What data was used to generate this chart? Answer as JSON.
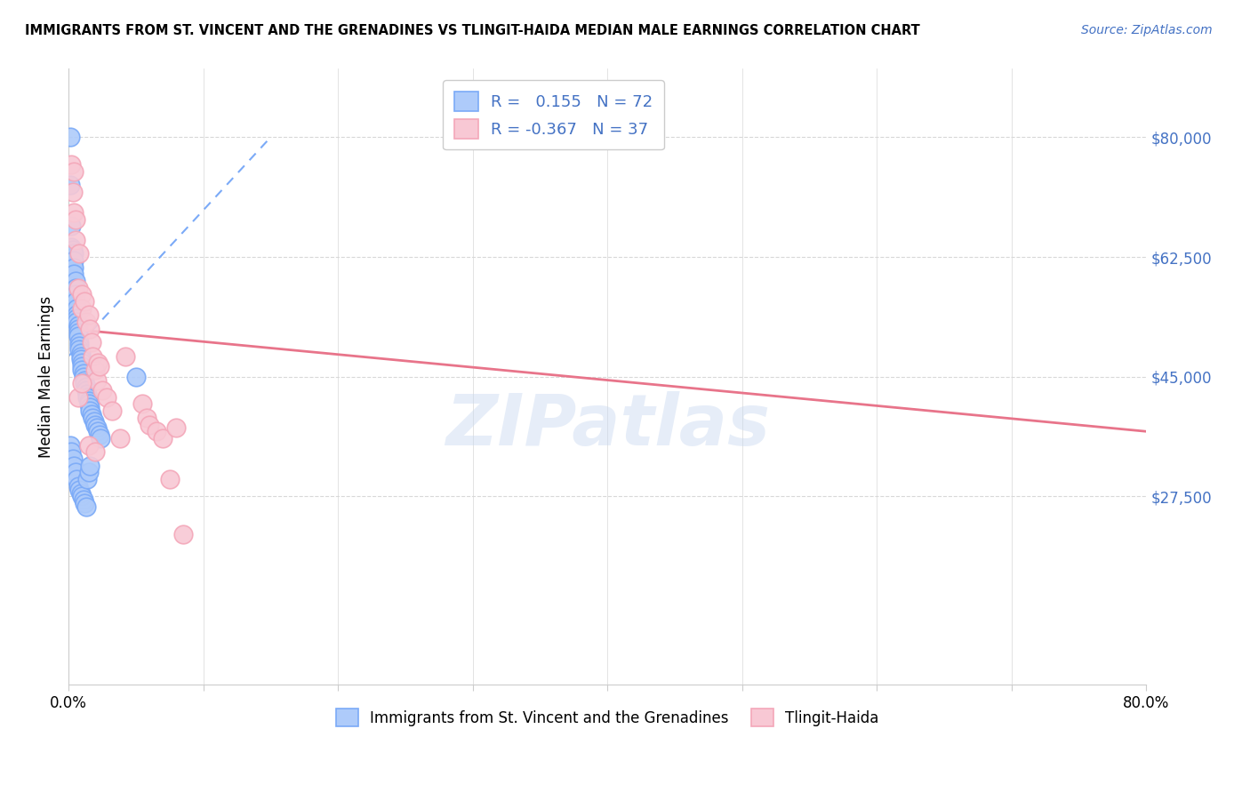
{
  "title": "IMMIGRANTS FROM ST. VINCENT AND THE GRENADINES VS TLINGIT-HAIDA MEDIAN MALE EARNINGS CORRELATION CHART",
  "source": "Source: ZipAtlas.com",
  "ylabel": "Median Male Earnings",
  "xlim": [
    0,
    0.8
  ],
  "ylim": [
    0,
    90000
  ],
  "yticks": [
    27500,
    45000,
    62500,
    80000
  ],
  "ytick_labels": [
    "$27,500",
    "$45,000",
    "$62,500",
    "$80,000"
  ],
  "xtick_positions": [
    0.0,
    0.1,
    0.2,
    0.3,
    0.4,
    0.5,
    0.6,
    0.7,
    0.8
  ],
  "xtick_labels": [
    "0.0%",
    "",
    "",
    "",
    "",
    "",
    "",
    "",
    "80.0%"
  ],
  "blue_face": "#aecbfa",
  "blue_edge": "#7baaf7",
  "pink_face": "#f8c8d4",
  "pink_edge": "#f4a7b9",
  "blue_line_color": "#7baaf7",
  "pink_line_color": "#e8748a",
  "watermark": "ZIPatlas",
  "grid_color": "#d8d8d8",
  "blue_x": [
    0.001,
    0.001,
    0.002,
    0.001,
    0.002,
    0.002,
    0.003,
    0.003,
    0.003,
    0.003,
    0.004,
    0.004,
    0.004,
    0.004,
    0.005,
    0.005,
    0.005,
    0.005,
    0.006,
    0.006,
    0.006,
    0.006,
    0.007,
    0.007,
    0.007,
    0.007,
    0.008,
    0.008,
    0.008,
    0.009,
    0.009,
    0.009,
    0.01,
    0.01,
    0.01,
    0.011,
    0.011,
    0.012,
    0.012,
    0.013,
    0.013,
    0.014,
    0.014,
    0.015,
    0.015,
    0.016,
    0.016,
    0.017,
    0.018,
    0.019,
    0.02,
    0.021,
    0.022,
    0.023,
    0.024,
    0.001,
    0.002,
    0.003,
    0.004,
    0.005,
    0.006,
    0.007,
    0.008,
    0.009,
    0.01,
    0.011,
    0.012,
    0.013,
    0.014,
    0.015,
    0.016,
    0.05
  ],
  "blue_y": [
    80000,
    73000,
    67000,
    63000,
    64000,
    60000,
    63500,
    62500,
    62000,
    61000,
    63000,
    62000,
    61000,
    60000,
    59000,
    58000,
    57000,
    56000,
    55000,
    54000,
    53500,
    53000,
    52500,
    52000,
    51500,
    51000,
    50000,
    49500,
    49000,
    48500,
    48000,
    47500,
    47000,
    46500,
    46000,
    45500,
    45000,
    44500,
    44000,
    43500,
    43000,
    42500,
    42000,
    41500,
    41000,
    40500,
    40000,
    39500,
    39000,
    38500,
    38000,
    37500,
    37000,
    36500,
    36000,
    35000,
    34000,
    33000,
    32000,
    31000,
    30000,
    29000,
    28500,
    28000,
    27500,
    27000,
    26500,
    26000,
    30000,
    31000,
    32000,
    45000
  ],
  "pink_x": [
    0.002,
    0.003,
    0.004,
    0.004,
    0.005,
    0.005,
    0.007,
    0.008,
    0.01,
    0.01,
    0.012,
    0.013,
    0.015,
    0.016,
    0.017,
    0.018,
    0.02,
    0.021,
    0.022,
    0.023,
    0.025,
    0.028,
    0.032,
    0.038,
    0.042,
    0.055,
    0.058,
    0.06,
    0.065,
    0.07,
    0.075,
    0.08,
    0.085,
    0.007,
    0.01,
    0.015,
    0.02
  ],
  "pink_y": [
    76000,
    72000,
    69000,
    75000,
    68000,
    65000,
    58000,
    63000,
    57000,
    55000,
    56000,
    53000,
    54000,
    52000,
    50000,
    48000,
    46000,
    44500,
    47000,
    46500,
    43000,
    42000,
    40000,
    36000,
    48000,
    41000,
    39000,
    38000,
    37000,
    36000,
    30000,
    37500,
    22000,
    42000,
    44000,
    35000,
    34000
  ],
  "pink_line_x0": 0.0,
  "pink_line_y0": 52000,
  "pink_line_x1": 0.8,
  "pink_line_y1": 37000,
  "blue_line_x0": 0.0,
  "blue_line_y0": 48000,
  "blue_line_x1": 0.15,
  "blue_line_y1": 80000
}
